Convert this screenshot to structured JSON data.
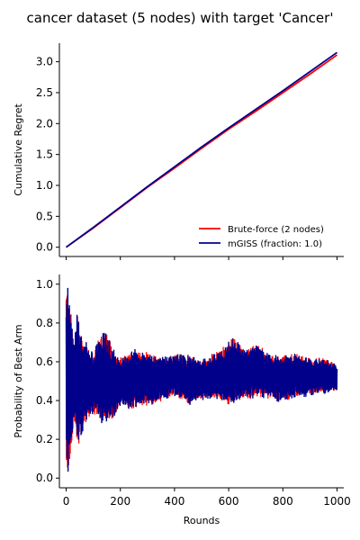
{
  "chart_data": {
    "type": "line",
    "title": "cancer dataset (5 nodes) with target 'Cancer'",
    "colors": {
      "brute_force": "#ff0000",
      "mgiss": "#00008b"
    },
    "legend_position": "lower right",
    "panels": [
      {
        "id": "regret",
        "ylabel": "Cumulative Regret",
        "xlabel": "",
        "xlim": [
          -25,
          1025
        ],
        "ylim": [
          -0.15,
          3.3
        ],
        "xticks": [
          0,
          200,
          400,
          600,
          800,
          1000
        ],
        "show_x_tick_labels": false,
        "yticks": [
          0.0,
          0.5,
          1.0,
          1.5,
          2.0,
          2.5,
          3.0
        ],
        "ytick_labels": [
          "0.0",
          "0.5",
          "1.0",
          "1.5",
          "2.0",
          "2.5",
          "3.0"
        ],
        "series": [
          {
            "name": "Brute-force (2 nodes)",
            "key": "brute_force",
            "x": [
              0,
              100,
              200,
              300,
              400,
              500,
              600,
              700,
              800,
              900,
              1000
            ],
            "y": [
              0.0,
              0.31,
              0.64,
              0.97,
              1.28,
              1.6,
              1.91,
              2.2,
              2.5,
              2.8,
              3.11
            ]
          },
          {
            "name": "mGISS (fraction: 1.0)",
            "key": "mgiss",
            "x": [
              0,
              100,
              200,
              300,
              400,
              500,
              600,
              700,
              800,
              900,
              1000
            ],
            "y": [
              0.0,
              0.32,
              0.65,
              0.98,
              1.3,
              1.62,
              1.93,
              2.23,
              2.53,
              2.84,
              3.15
            ]
          }
        ]
      },
      {
        "id": "probability",
        "ylabel": "Probability of Best Arm",
        "xlabel": "Rounds",
        "xlim": [
          -25,
          1025
        ],
        "ylim": [
          -0.05,
          1.05
        ],
        "xticks": [
          0,
          200,
          400,
          600,
          800,
          1000
        ],
        "xtick_labels": [
          "0",
          "200",
          "400",
          "600",
          "800",
          "1000"
        ],
        "show_x_tick_labels": true,
        "yticks": [
          0.0,
          0.2,
          0.4,
          0.6,
          0.8,
          1.0
        ],
        "ytick_labels": [
          "0.0",
          "0.2",
          "0.4",
          "0.6",
          "0.8",
          "1.0"
        ],
        "envelope": {
          "x": [
            0,
            5,
            10,
            20,
            30,
            40,
            60,
            80,
            100,
            130,
            150,
            175,
            200,
            250,
            300,
            350,
            400,
            450,
            500,
            550,
            600,
            625,
            650,
            700,
            750,
            800,
            850,
            900,
            950,
            1000
          ],
          "upper": [
            1.0,
            1.0,
            0.97,
            0.82,
            0.72,
            0.86,
            0.72,
            0.68,
            0.64,
            0.76,
            0.74,
            0.66,
            0.62,
            0.66,
            0.64,
            0.62,
            0.64,
            0.63,
            0.61,
            0.64,
            0.7,
            0.74,
            0.66,
            0.69,
            0.64,
            0.63,
            0.64,
            0.61,
            0.62,
            0.58
          ],
          "lower": [
            0.0,
            0.0,
            0.04,
            0.16,
            0.28,
            0.15,
            0.23,
            0.31,
            0.33,
            0.29,
            0.27,
            0.32,
            0.37,
            0.36,
            0.38,
            0.4,
            0.43,
            0.38,
            0.41,
            0.42,
            0.38,
            0.39,
            0.41,
            0.42,
            0.42,
            0.39,
            0.42,
            0.43,
            0.44,
            0.45
          ]
        }
      }
    ]
  }
}
